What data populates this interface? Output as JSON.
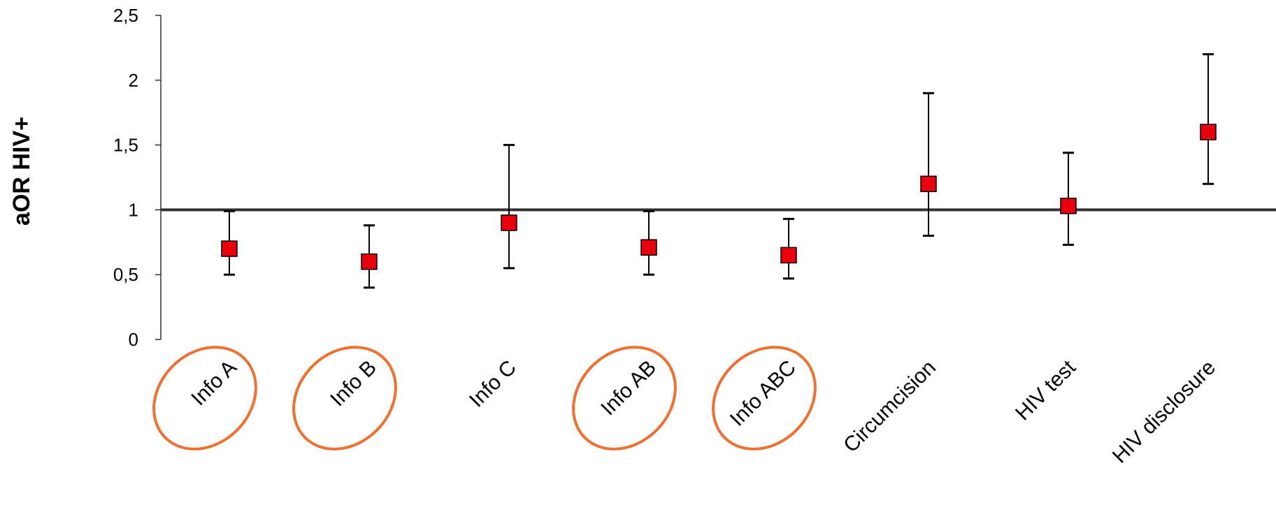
{
  "chart_data": {
    "type": "scatter",
    "title": "",
    "xlabel": "",
    "ylabel": "aOR  HIV+",
    "ylim": [
      0,
      2.5
    ],
    "y_ticks": [
      "0",
      "0,5",
      "1",
      "1,5",
      "2",
      "2,5"
    ],
    "y_tick_values": [
      0,
      0.5,
      1,
      1.5,
      2,
      2.5
    ],
    "reference_line": 1,
    "grid": false,
    "categories": [
      "Info A",
      "Info B",
      "Info C",
      "Info AB",
      "Info ABC",
      "Circumcision",
      "HIV test",
      "HIV disclosure"
    ],
    "series": [
      {
        "values": [
          0.7,
          0.6,
          0.9,
          0.71,
          0.65,
          1.2,
          1.03,
          1.6
        ],
        "lower": [
          0.5,
          0.4,
          0.55,
          0.5,
          0.47,
          0.8,
          0.73,
          1.2
        ],
        "upper": [
          0.99,
          0.88,
          1.5,
          0.99,
          0.93,
          1.9,
          1.44,
          2.2
        ]
      }
    ],
    "highlighted_categories": [
      "Info A",
      "Info B",
      "Info AB",
      "Info ABC"
    ],
    "colors": {
      "marker": "#e8000b",
      "highlight": "#f07030",
      "axis": "#000000",
      "reference": "#333333"
    }
  }
}
